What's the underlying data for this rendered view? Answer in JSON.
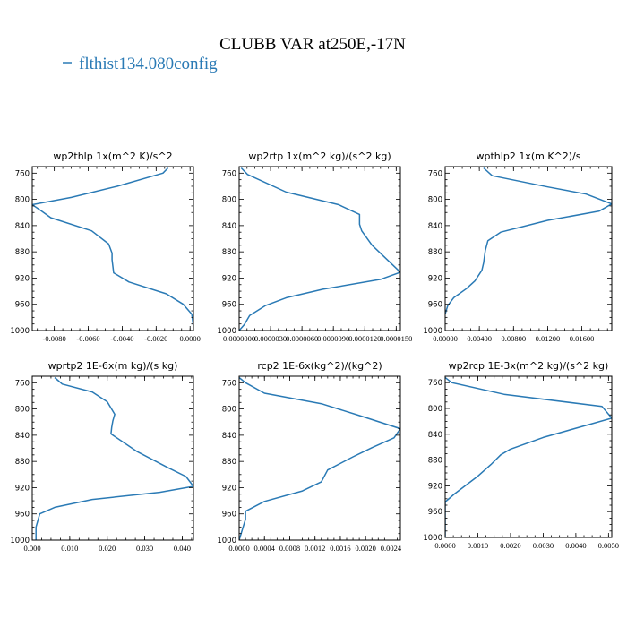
{
  "figure": {
    "title": "CLUBB VAR at250E,-17N",
    "legend_label": "flthist134.080config",
    "series_color": "#2a7ab5"
  },
  "chart_data": [
    {
      "type": "line",
      "title": "wp2thlp  1x(m^2 K)/s^2",
      "xlim": [
        -0.0093,
        0.0002
      ],
      "ylim": [
        1000,
        750
      ],
      "xticks": [
        -0.008,
        -0.006,
        -0.004,
        -0.002,
        0.0
      ],
      "xtick_labels": [
        "-0.0080",
        "-0.0060",
        "-0.0040",
        "-0.0020",
        "0.0000"
      ],
      "yticks": [
        760,
        800,
        840,
        880,
        920,
        960,
        1000
      ],
      "ytick_labels": [
        "760",
        "800",
        "840",
        "880",
        "920",
        "960",
        "1000"
      ],
      "series": [
        {
          "x": [
            -0.0013,
            -0.0016,
            -0.0043,
            -0.007,
            -0.0093,
            -0.0088,
            -0.0082,
            -0.0058,
            -0.0048,
            -0.0046,
            -0.0046,
            -0.0045,
            -0.0036,
            -0.0014,
            -0.0004,
            0.0001,
            0.0002
          ],
          "y": [
            752,
            760,
            780,
            797,
            808,
            817,
            828,
            848,
            868,
            882,
            892,
            912,
            926,
            944,
            960,
            975,
            995
          ]
        }
      ]
    },
    {
      "type": "line",
      "title": "wp2rtp  1x(m^2 kg)/(s^2 kg)",
      "xlim": [
        0,
        1.54e-05
      ],
      "ylim": [
        1000,
        750
      ],
      "xticks": [
        0.0,
        3e-06,
        6e-06,
        9e-06,
        1.2e-05,
        1.5e-05
      ],
      "xtick_labels": [
        "0.0000000",
        "0.0000030",
        "0.0000060",
        "0.0000090",
        "0.0000120",
        "0.0000150"
      ],
      "yticks": [
        760,
        800,
        840,
        880,
        920,
        960,
        1000
      ],
      "ytick_labels": [
        "760",
        "800",
        "840",
        "880",
        "920",
        "960",
        "1000"
      ],
      "series": [
        {
          "x": [
            2e-07,
            8e-07,
            4.5e-06,
            9.5e-06,
            1.15e-05,
            1.15e-05,
            1.17e-05,
            1.27e-05,
            1.54e-05,
            1.35e-05,
            8e-06,
            4.5e-06,
            2.5e-06,
            1e-06,
            5e-07,
            0.0
          ],
          "y": [
            752,
            762,
            789,
            808,
            823,
            838,
            848,
            870,
            911,
            922,
            937,
            950,
            962,
            977,
            991,
            1000
          ]
        }
      ]
    },
    {
      "type": "line",
      "title": "wpthlp2  1x(m K^2)/s",
      "xlim": [
        0,
        0.0195
      ],
      "ylim": [
        1000,
        750
      ],
      "xticks": [
        0.0,
        0.004,
        0.008,
        0.012,
        0.016
      ],
      "xtick_labels": [
        "0.00000",
        "0.00400",
        "0.00800",
        "0.01200",
        "0.01600"
      ],
      "yticks": [
        760,
        800,
        840,
        880,
        920,
        960,
        1000
      ],
      "ytick_labels": [
        "760",
        "800",
        "840",
        "880",
        "920",
        "960",
        "1000"
      ],
      "series": [
        {
          "x": [
            0.0045,
            0.0055,
            0.012,
            0.0165,
            0.0195,
            0.018,
            0.012,
            0.0065,
            0.005,
            0.0047,
            0.0045,
            0.0043,
            0.0035,
            0.0025,
            0.001,
            0.0003,
            0.0
          ],
          "y": [
            752,
            764,
            781,
            792,
            807,
            818,
            832,
            850,
            863,
            878,
            897,
            908,
            924,
            936,
            950,
            962,
            975
          ]
        }
      ]
    },
    {
      "type": "line",
      "title": "wprtp2  1E-6x(m kg)/(s kg)",
      "xlim": [
        0,
        0.043
      ],
      "ylim": [
        1000,
        750
      ],
      "xticks": [
        0.0,
        0.01,
        0.02,
        0.03,
        0.04
      ],
      "xtick_labels": [
        "0.000",
        "0.010",
        "0.020",
        "0.030",
        "0.040"
      ],
      "yticks": [
        760,
        800,
        840,
        880,
        920,
        960,
        1000
      ],
      "ytick_labels": [
        "760",
        "800",
        "840",
        "880",
        "920",
        "960",
        "1000"
      ],
      "series": [
        {
          "x": [
            0.006,
            0.008,
            0.016,
            0.02,
            0.022,
            0.0215,
            0.0212,
            0.021,
            0.028,
            0.036,
            0.041,
            0.043,
            0.034,
            0.016,
            0.006,
            0.002,
            0.001,
            0.001
          ],
          "y": [
            752,
            762,
            774,
            789,
            808,
            818,
            828,
            838,
            865,
            889,
            903,
            918,
            927,
            938,
            950,
            960,
            980,
            1000
          ]
        }
      ]
    },
    {
      "type": "line",
      "title": "rcp2  1E-6x(kg^2)/(kg^2)",
      "xlim": [
        0,
        0.00255
      ],
      "ylim": [
        1000,
        750
      ],
      "xticks": [
        0.0,
        0.0004,
        0.0008,
        0.0012,
        0.0016,
        0.002,
        0.0024
      ],
      "xtick_labels": [
        "0.0000",
        "0.0004",
        "0.0008",
        "0.0012",
        "0.0016",
        "0.0020",
        "0.0024"
      ],
      "yticks": [
        760,
        800,
        840,
        880,
        920,
        960,
        1000
      ],
      "ytick_labels": [
        "760",
        "800",
        "840",
        "880",
        "920",
        "960",
        "1000"
      ],
      "series": [
        {
          "x": [
            0.0,
            0.0001,
            0.0004,
            0.0013,
            0.0019,
            0.00255,
            0.00245,
            0.0021,
            0.0018,
            0.0014,
            0.0013,
            0.001,
            0.0004,
            0.0001,
            0.0001,
            0.0
          ],
          "y": [
            752,
            760,
            776,
            792,
            810,
            830,
            844,
            859,
            873,
            893,
            911,
            925,
            941,
            956,
            968,
            1000
          ]
        }
      ]
    },
    {
      "type": "line",
      "title": "wp2rcp  1E-3x(m^2 kg)/(s^2 kg)",
      "xlim": [
        0,
        0.0051
      ],
      "ylim": [
        1000,
        750
      ],
      "xticks": [
        0.0,
        0.001,
        0.002,
        0.003,
        0.004,
        0.005
      ],
      "xtick_labels": [
        "0.0000",
        "0.0010",
        "0.0020",
        "0.0030",
        "0.0040",
        "0.0050"
      ],
      "yticks": [
        760,
        800,
        840,
        880,
        920,
        960,
        1000
      ],
      "ytick_labels": [
        "760",
        "800",
        "840",
        "880",
        "920",
        "960",
        "1000"
      ],
      "series": [
        {
          "x": [
            0.0,
            0.0002,
            0.0018,
            0.0048,
            0.0051,
            0.003,
            0.002,
            0.0017,
            0.0014,
            0.001,
            0.0003,
            0.0,
            0.0
          ],
          "y": [
            752,
            760,
            778,
            797,
            815,
            845,
            863,
            872,
            887,
            905,
            932,
            945,
            1000
          ]
        }
      ]
    }
  ]
}
